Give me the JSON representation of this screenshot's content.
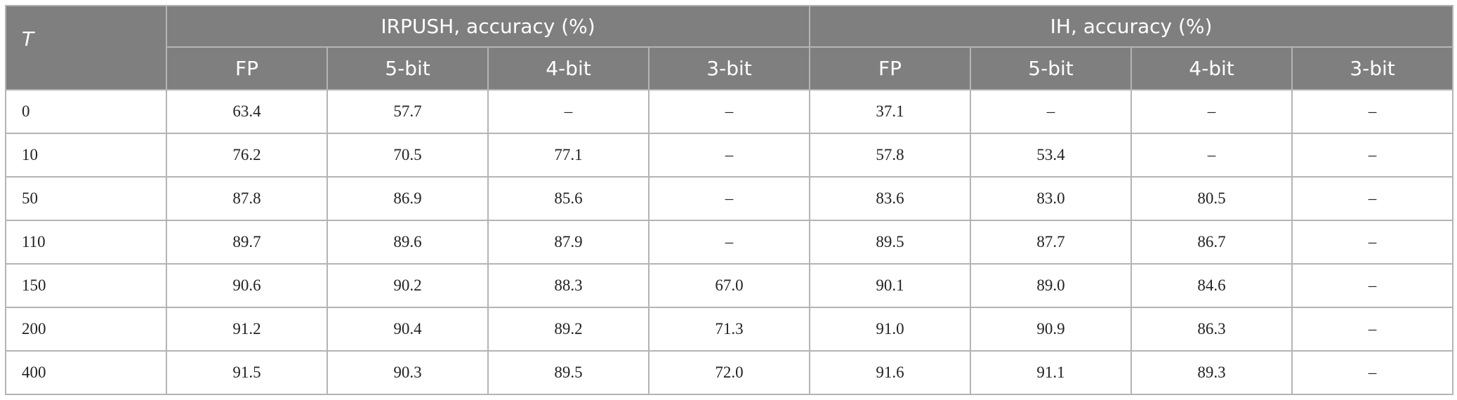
{
  "table": {
    "row_label": "T",
    "groups": [
      "IRPUSH, accuracy (%)",
      "IH, accuracy (%)"
    ],
    "subheaders": [
      "FP",
      "5-bit",
      "4-bit",
      "3-bit",
      "FP",
      "5-bit",
      "4-bit",
      "3-bit"
    ],
    "rows": [
      [
        "0",
        "63.4",
        "57.7",
        "–",
        "–",
        "37.1",
        "–",
        "–",
        "–"
      ],
      [
        "10",
        "76.2",
        "70.5",
        "77.1",
        "–",
        "57.8",
        "53.4",
        "–",
        "–"
      ],
      [
        "50",
        "87.8",
        "86.9",
        "85.6",
        "–",
        "83.6",
        "83.0",
        "80.5",
        "–"
      ],
      [
        "110",
        "89.7",
        "89.6",
        "87.9",
        "–",
        "89.5",
        "87.7",
        "86.7",
        "–"
      ],
      [
        "150",
        "90.6",
        "90.2",
        "88.3",
        "67.0",
        "90.1",
        "89.0",
        "84.6",
        "–"
      ],
      [
        "200",
        "91.2",
        "90.4",
        "89.2",
        "71.3",
        "91.0",
        "90.9",
        "86.3",
        "–"
      ],
      [
        "400",
        "91.5",
        "90.3",
        "89.5",
        "72.0",
        "91.6",
        "91.1",
        "89.3",
        "–"
      ]
    ]
  }
}
